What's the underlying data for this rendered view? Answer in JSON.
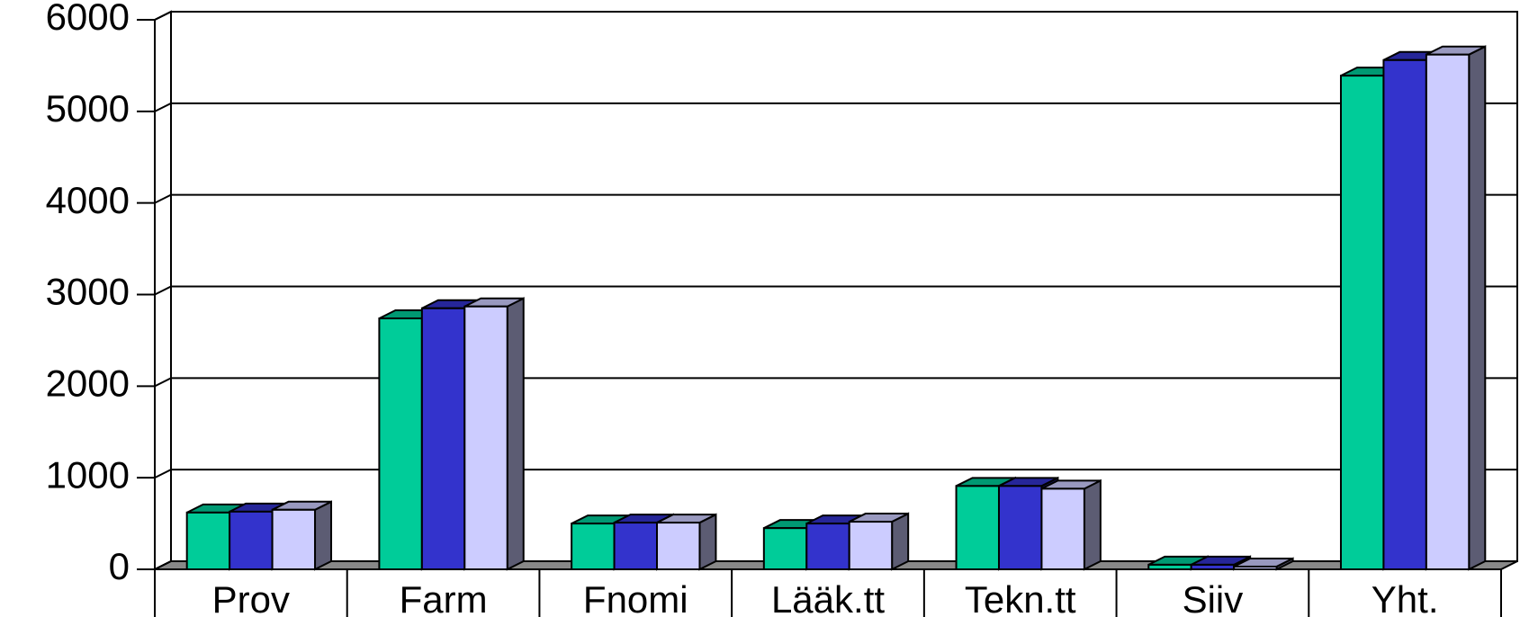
{
  "chart_data": {
    "type": "bar3d",
    "categories": [
      "Prov",
      "Farm",
      "Fnomi",
      "Lääk.tt",
      "Tekn.tt",
      "Siiv",
      "Yht."
    ],
    "series": [
      {
        "color": "#00cc99",
        "values": [
          620,
          2740,
          500,
          450,
          910,
          50,
          5390
        ]
      },
      {
        "color": "#3333cc",
        "values": [
          630,
          2850,
          510,
          500,
          910,
          50,
          5560
        ]
      },
      {
        "color": "#ccccff",
        "values": [
          650,
          2870,
          510,
          520,
          880,
          30,
          5620
        ]
      }
    ],
    "ylim": [
      0,
      6000
    ],
    "yticks": [
      0,
      1000,
      2000,
      3000,
      4000,
      5000,
      6000
    ],
    "grid": true
  }
}
